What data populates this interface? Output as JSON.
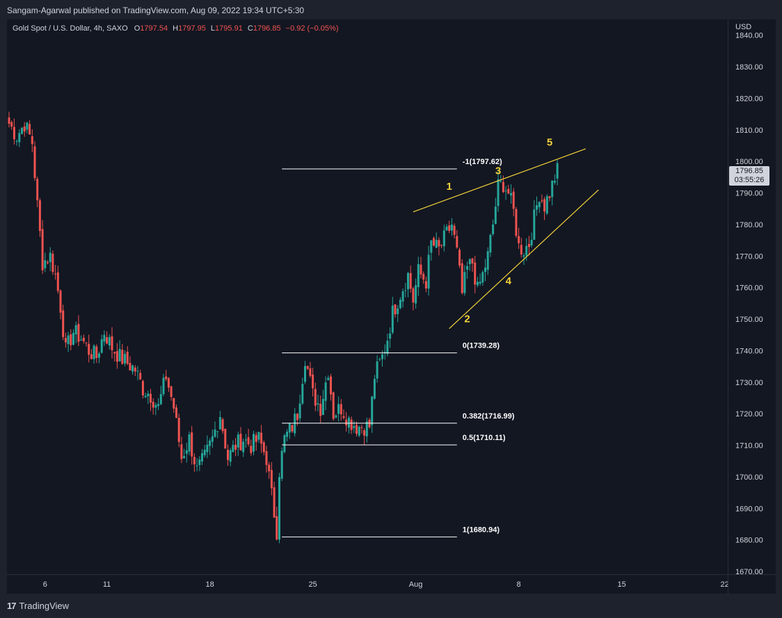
{
  "header": {
    "published": "Sangam-Agarwal published on TradingView.com, Aug 09, 2022 19:34 UTC+5:30"
  },
  "legend": {
    "symbol": "Gold Spot / U.S. Dollar, 4h, SAXO",
    "o_label": "O",
    "o_value": "1797.54",
    "h_label": "H",
    "h_value": "1797.95",
    "l_label": "L",
    "l_value": "1795.91",
    "c_label": "C",
    "c_value": "1796.85",
    "change": "−0.92 (−0.05%)"
  },
  "price_axis": {
    "currency": "USD",
    "current_price": "1796.85",
    "countdown": "03:55:26"
  },
  "footer": {
    "brand_logo": "17",
    "brand_name": "TradingView"
  },
  "colors": {
    "up": "#26a69a",
    "down": "#ef5350",
    "wave": "#f5d33a",
    "fib": "#ffffff",
    "background": "#131722"
  },
  "chart_data": {
    "type": "candlestick",
    "ylim": [
      1670,
      1845
    ],
    "yticks": [
      1670,
      1680,
      1690,
      1700,
      1710,
      1720,
      1730,
      1740,
      1750,
      1760,
      1770,
      1780,
      1790,
      1800,
      1810,
      1820,
      1830,
      1840
    ],
    "ytick_labels": [
      "1670.00",
      "1680.00",
      "1690.00",
      "1700.00",
      "1710.00",
      "1720.00",
      "1730.00",
      "1740.00",
      "1750.00",
      "1760.00",
      "1770.00",
      "1780.00",
      "1790.00",
      "1800.00",
      "1810.00",
      "1820.00",
      "1830.00",
      "1840.00"
    ],
    "xlim": [
      0,
      280
    ],
    "xticks": [
      {
        "label": "6",
        "x": 14
      },
      {
        "label": "11",
        "x": 38
      },
      {
        "label": "18",
        "x": 78
      },
      {
        "label": "25",
        "x": 118
      },
      {
        "label": "Aug",
        "x": 158
      },
      {
        "label": "8",
        "x": 198
      },
      {
        "label": "15",
        "x": 238
      },
      {
        "label": "22",
        "x": 278
      }
    ],
    "anchors": [
      {
        "x": 0,
        "y": 1812
      },
      {
        "x": 3,
        "y": 1808
      },
      {
        "x": 6,
        "y": 1812
      },
      {
        "x": 9,
        "y": 1806
      },
      {
        "x": 11,
        "y": 1786
      },
      {
        "x": 13,
        "y": 1768
      },
      {
        "x": 16,
        "y": 1770
      },
      {
        "x": 18,
        "y": 1764
      },
      {
        "x": 20,
        "y": 1754
      },
      {
        "x": 22,
        "y": 1740
      },
      {
        "x": 25,
        "y": 1746
      },
      {
        "x": 28,
        "y": 1744
      },
      {
        "x": 31,
        "y": 1740
      },
      {
        "x": 34,
        "y": 1738
      },
      {
        "x": 37,
        "y": 1746
      },
      {
        "x": 40,
        "y": 1741
      },
      {
        "x": 43,
        "y": 1738
      },
      {
        "x": 46,
        "y": 1736
      },
      {
        "x": 49,
        "y": 1734
      },
      {
        "x": 52,
        "y": 1728
      },
      {
        "x": 55,
        "y": 1726
      },
      {
        "x": 58,
        "y": 1722
      },
      {
        "x": 61,
        "y": 1732
      },
      {
        "x": 64,
        "y": 1722
      },
      {
        "x": 67,
        "y": 1706
      },
      {
        "x": 70,
        "y": 1712
      },
      {
        "x": 73,
        "y": 1702
      },
      {
        "x": 76,
        "y": 1706
      },
      {
        "x": 79,
        "y": 1712
      },
      {
        "x": 82,
        "y": 1720
      },
      {
        "x": 85,
        "y": 1706
      },
      {
        "x": 88,
        "y": 1710
      },
      {
        "x": 91,
        "y": 1712
      },
      {
        "x": 94,
        "y": 1710
      },
      {
        "x": 97,
        "y": 1712
      },
      {
        "x": 100,
        "y": 1706
      },
      {
        "x": 102,
        "y": 1694
      },
      {
        "x": 104,
        "y": 1683
      },
      {
        "x": 105,
        "y": 1702
      },
      {
        "x": 107,
        "y": 1712
      },
      {
        "x": 110,
        "y": 1716
      },
      {
        "x": 112,
        "y": 1720
      },
      {
        "x": 115,
        "y": 1738
      },
      {
        "x": 118,
        "y": 1726
      },
      {
        "x": 121,
        "y": 1722
      },
      {
        "x": 124,
        "y": 1734
      },
      {
        "x": 126,
        "y": 1720
      },
      {
        "x": 129,
        "y": 1722
      },
      {
        "x": 132,
        "y": 1718
      },
      {
        "x": 135,
        "y": 1716
      },
      {
        "x": 138,
        "y": 1716
      },
      {
        "x": 140,
        "y": 1716
      },
      {
        "x": 142,
        "y": 1732
      },
      {
        "x": 145,
        "y": 1738
      },
      {
        "x": 147,
        "y": 1744
      },
      {
        "x": 149,
        "y": 1752
      },
      {
        "x": 152,
        "y": 1758
      },
      {
        "x": 155,
        "y": 1764
      },
      {
        "x": 157,
        "y": 1756
      },
      {
        "x": 159,
        "y": 1765
      },
      {
        "x": 162,
        "y": 1762
      },
      {
        "x": 164,
        "y": 1774
      },
      {
        "x": 167,
        "y": 1772
      },
      {
        "x": 170,
        "y": 1777
      },
      {
        "x": 172,
        "y": 1780
      },
      {
        "x": 174,
        "y": 1771
      },
      {
        "x": 176,
        "y": 1758
      },
      {
        "x": 178,
        "y": 1766
      },
      {
        "x": 180,
        "y": 1768
      },
      {
        "x": 182,
        "y": 1759
      },
      {
        "x": 184,
        "y": 1764
      },
      {
        "x": 186,
        "y": 1770
      },
      {
        "x": 188,
        "y": 1780
      },
      {
        "x": 190,
        "y": 1792
      },
      {
        "x": 192,
        "y": 1793
      },
      {
        "x": 194,
        "y": 1790
      },
      {
        "x": 196,
        "y": 1784
      },
      {
        "x": 198,
        "y": 1773
      },
      {
        "x": 200,
        "y": 1772
      },
      {
        "x": 202,
        "y": 1774
      },
      {
        "x": 204,
        "y": 1782
      },
      {
        "x": 206,
        "y": 1790
      },
      {
        "x": 208,
        "y": 1786
      },
      {
        "x": 210,
        "y": 1790
      },
      {
        "x": 212,
        "y": 1795
      },
      {
        "x": 213,
        "y": 1797
      }
    ],
    "fibonacci": [
      {
        "label": "-1(1797.62)",
        "price": 1797.62
      },
      {
        "label": "0(1739.28)",
        "price": 1739.28
      },
      {
        "label": "0.382(1716.99)",
        "price": 1716.99
      },
      {
        "label": "0.5(1710.11)",
        "price": 1710.11
      },
      {
        "label": "1(1680.94)",
        "price": 1680.94
      }
    ],
    "fib_x_range": [
      106,
      174
    ],
    "wedge_lines": [
      {
        "from": {
          "x": 157,
          "y": 1784
        },
        "to": {
          "x": 224,
          "y": 1804
        }
      },
      {
        "from": {
          "x": 171,
          "y": 1747
        },
        "to": {
          "x": 229,
          "y": 1791
        }
      }
    ],
    "waves": [
      {
        "label": "1",
        "x": 171,
        "y": 1791
      },
      {
        "label": "2",
        "x": 178,
        "y": 1749
      },
      {
        "label": "3",
        "x": 190,
        "y": 1796
      },
      {
        "label": "4",
        "x": 194,
        "y": 1761
      },
      {
        "label": "5",
        "x": 210,
        "y": 1805
      }
    ]
  }
}
